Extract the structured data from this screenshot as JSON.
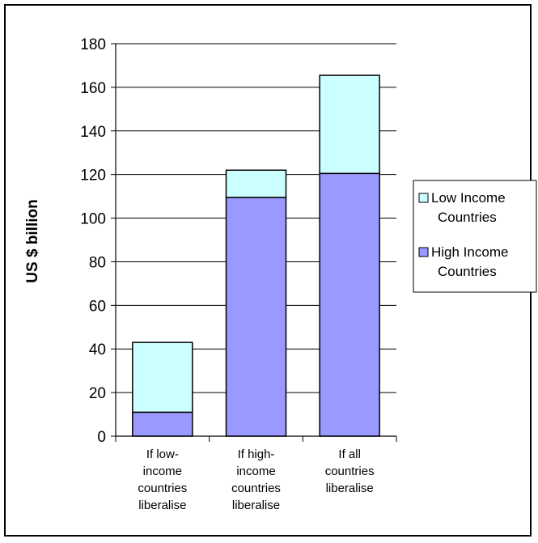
{
  "chart_data": {
    "type": "bar",
    "stacked": true,
    "categories": [
      [
        "If low-",
        "income",
        "countries",
        "liberalise"
      ],
      [
        "If high-",
        "income",
        "countries",
        "liberalise"
      ],
      [
        "If all",
        "countries",
        "liberalise"
      ]
    ],
    "series": [
      {
        "name": [
          "High Income",
          "Countries"
        ],
        "values": [
          11,
          109.5,
          120.5
        ],
        "color": "#9999ff"
      },
      {
        "name": [
          "Low Income",
          "Countries"
        ],
        "values": [
          32,
          12.5,
          45
        ],
        "color": "#ccffff"
      }
    ],
    "ylabel": "US $ billion",
    "ylim": [
      0,
      180
    ],
    "yticks": [
      0,
      20,
      40,
      60,
      80,
      100,
      120,
      140,
      160,
      180
    ],
    "grid": true,
    "legend_position": "right"
  }
}
